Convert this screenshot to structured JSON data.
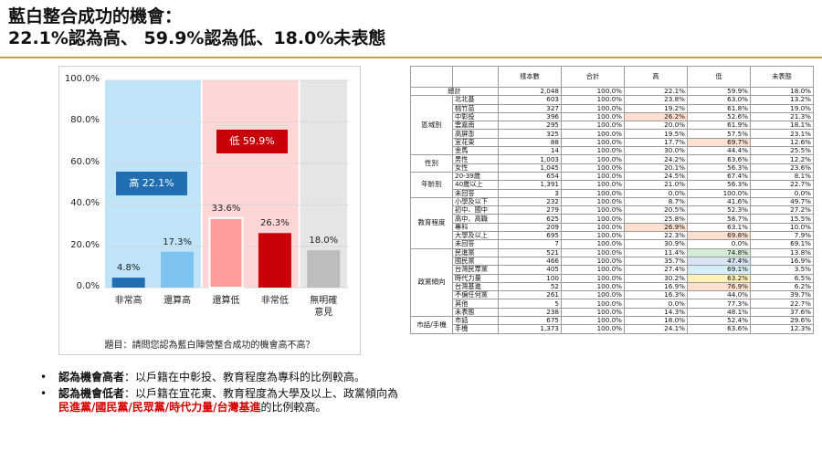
{
  "title_line1": "藍白整合成功的機會：",
  "title_line2": "22.1%認為高、 59.9%認為低、18.0%未表態",
  "chart_data": {
    "type": "bar",
    "categories": [
      "非常高",
      "還算高",
      "還算低",
      "非常低",
      "無明確意見"
    ],
    "category_labels": [
      [
        "非常高"
      ],
      [
        "還算高"
      ],
      [
        "還算低"
      ],
      [
        "非常低"
      ],
      [
        "無明確",
        "意見"
      ]
    ],
    "values": [
      4.8,
      17.3,
      33.6,
      26.3,
      18.0
    ],
    "value_labels": [
      "4.8%",
      "17.3%",
      "33.6%",
      "26.3%",
      "18.0%"
    ],
    "bar_colors": [
      "#1f6fb2",
      "#7cc4ee",
      "#ff9d9d",
      "#c8000a",
      "#bdbdbd"
    ],
    "group_bg_colors": [
      "#bfe3f7",
      "#ffd6d6",
      "#e5e5e5"
    ],
    "yticks": [
      "100.0%",
      "80.0%",
      "60.0%",
      "40.0%",
      "20.0%",
      "0.0%"
    ],
    "ylim": [
      0,
      100
    ],
    "callout_high": "高 22.1%",
    "callout_low": "低 59.9%",
    "callout_high_color": "#1f6fb2",
    "callout_low_color": "#c8000a",
    "question": "題目：請問您認為藍白陣營整合成功的機會高不高？"
  },
  "bullets": [
    {
      "head": "認為機會高者",
      "text": "：以戶籍在中彰投、教育程度為專科的比例較高。"
    },
    {
      "head": "認為機會低者",
      "text_before": "：以戶籍在宜花東、教育程度為大學及以上、政黨傾向為",
      "red": "民進黨/國民黨/民眾黨/時代力量/台灣基進",
      "text_after": "的比例較高。"
    }
  ],
  "table": {
    "headers": [
      "",
      "",
      "樣本數",
      "合計",
      "高",
      "低",
      "未表態"
    ],
    "total": {
      "label": "總計",
      "values": [
        "2,048",
        "100.0%",
        "22.1%",
        "59.9%",
        "18.0%"
      ]
    },
    "groups": [
      {
        "name": "區域別",
        "rows": [
          {
            "label": "北北基",
            "values": [
              "603",
              "100.0%",
              "23.8%",
              "63.0%",
              "13.2%"
            ]
          },
          {
            "label": "桃竹苗",
            "values": [
              "327",
              "100.0%",
              "19.2%",
              "61.8%",
              "19.0%"
            ]
          },
          {
            "label": "中彰投",
            "values": [
              "396",
              "100.0%",
              "26.2%",
              "52.6%",
              "21.3%"
            ],
            "hl": {
              "2": "#fde0d0"
            }
          },
          {
            "label": "雲嘉南",
            "values": [
              "295",
              "100.0%",
              "20.0%",
              "61.9%",
              "18.1%"
            ]
          },
          {
            "label": "高屏澎",
            "values": [
              "325",
              "100.0%",
              "19.5%",
              "57.5%",
              "23.1%"
            ]
          },
          {
            "label": "宜花東",
            "values": [
              "88",
              "100.0%",
              "17.7%",
              "69.7%",
              "12.6%"
            ],
            "hl": {
              "3": "#fde0d0"
            }
          },
          {
            "label": "金馬",
            "values": [
              "14",
              "100.0%",
              "30.0%",
              "44.4%",
              "25.5%"
            ]
          }
        ]
      },
      {
        "name": "性別",
        "rows": [
          {
            "label": "男性",
            "values": [
              "1,003",
              "100.0%",
              "24.2%",
              "63.6%",
              "12.2%"
            ]
          },
          {
            "label": "女性",
            "values": [
              "1,045",
              "100.0%",
              "20.1%",
              "56.3%",
              "23.6%"
            ]
          }
        ]
      },
      {
        "name": "年齡別",
        "rows": [
          {
            "label": "20-39歲",
            "values": [
              "654",
              "100.0%",
              "24.5%",
              "67.4%",
              "8.1%"
            ]
          },
          {
            "label": "40歲以上",
            "values": [
              "1,391",
              "100.0%",
              "21.0%",
              "56.3%",
              "22.7%"
            ]
          },
          {
            "label": "未回答",
            "values": [
              "3",
              "100.0%",
              "0.0%",
              "100.0%",
              "0.0%"
            ]
          }
        ]
      },
      {
        "name": "教育程度",
        "rows": [
          {
            "label": "小學及以下",
            "values": [
              "232",
              "100.0%",
              "8.7%",
              "41.6%",
              "49.7%"
            ]
          },
          {
            "label": "初中、國中",
            "values": [
              "279",
              "100.0%",
              "20.5%",
              "52.3%",
              "27.2%"
            ]
          },
          {
            "label": "高中、高職",
            "values": [
              "625",
              "100.0%",
              "25.8%",
              "58.7%",
              "15.5%"
            ]
          },
          {
            "label": "專科",
            "values": [
              "209",
              "100.0%",
              "26.9%",
              "63.1%",
              "10.0%"
            ],
            "hl": {
              "2": "#fde0d0"
            }
          },
          {
            "label": "大學及以上",
            "values": [
              "695",
              "100.0%",
              "22.3%",
              "69.8%",
              "7.9%"
            ],
            "hl": {
              "3": "#fde0d0"
            }
          },
          {
            "label": "未回答",
            "values": [
              "7",
              "100.0%",
              "30.9%",
              "0.0%",
              "69.1%"
            ]
          }
        ]
      },
      {
        "name": "政黨傾向",
        "rows": [
          {
            "label": "民進黨",
            "values": [
              "521",
              "100.0%",
              "11.4%",
              "74.8%",
              "13.8%"
            ],
            "hl": {
              "3": "#d5ecd4"
            }
          },
          {
            "label": "國民黨",
            "values": [
              "466",
              "100.0%",
              "35.7%",
              "47.4%",
              "16.9%"
            ],
            "hl": {
              "3": "#d9e4f5"
            }
          },
          {
            "label": "台灣民眾黨",
            "values": [
              "405",
              "100.0%",
              "27.4%",
              "69.1%",
              "3.5%"
            ],
            "hl": {
              "3": "#d6eef7"
            }
          },
          {
            "label": "時代力量",
            "values": [
              "100",
              "100.0%",
              "30.2%",
              "63.2%",
              "6.5%"
            ],
            "hl": {
              "3": "#fff2b8"
            }
          },
          {
            "label": "台灣基進",
            "values": [
              "52",
              "100.0%",
              "16.9%",
              "76.9%",
              "6.2%"
            ],
            "hl": {
              "3": "#fde0d0"
            }
          },
          {
            "label": "不偏任何黨",
            "values": [
              "261",
              "100.0%",
              "16.3%",
              "44.0%",
              "39.7%"
            ]
          },
          {
            "label": "其他",
            "values": [
              "5",
              "100.0%",
              "0.0%",
              "77.3%",
              "22.7%"
            ]
          },
          {
            "label": "未表態",
            "values": [
              "238",
              "100.0%",
              "14.3%",
              "48.1%",
              "37.6%"
            ]
          }
        ]
      },
      {
        "name": "市話/手機",
        "rows": [
          {
            "label": "市話",
            "values": [
              "675",
              "100.0%",
              "18.0%",
              "52.4%",
              "29.6%"
            ]
          },
          {
            "label": "手機",
            "values": [
              "1,373",
              "100.0%",
              "24.1%",
              "63.6%",
              "12.3%"
            ]
          }
        ]
      }
    ]
  }
}
